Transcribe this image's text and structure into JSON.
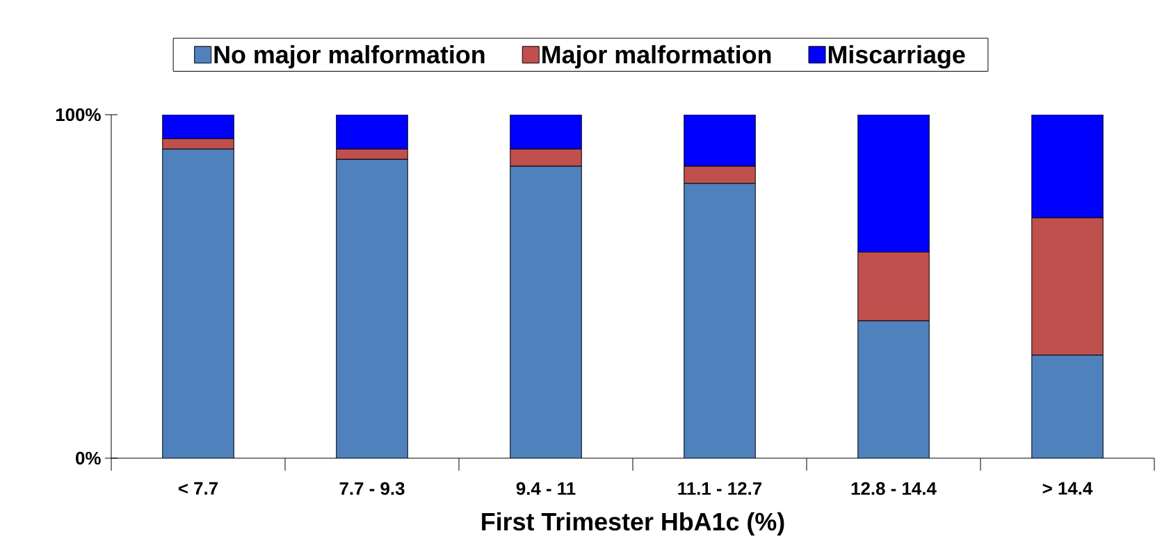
{
  "chart_data": {
    "type": "bar",
    "stacked": true,
    "xlabel": "First  Trimester  HbA1c  (%)",
    "categories": [
      "< 7.7",
      "7.7 - 9.3",
      "9.4 - 11",
      "11.1 - 12.7",
      "12.8 - 14.4",
      "> 14.4"
    ],
    "series": [
      {
        "name": "No  major malformation",
        "color": "#4f81bd",
        "values": [
          90,
          87,
          85,
          80,
          40,
          30
        ]
      },
      {
        "name": "Major malformation",
        "color": "#c0504d",
        "values": [
          3,
          3,
          5,
          5,
          20,
          40
        ]
      },
      {
        "name": "Miscarriage",
        "color": "#0000ff",
        "values": [
          7,
          10,
          10,
          15,
          40,
          30
        ]
      }
    ],
    "ylim": [
      0,
      100
    ],
    "yticks": [
      {
        "value": 0,
        "label": "0%"
      },
      {
        "value": 100,
        "label": "100%"
      }
    ],
    "legend": "top"
  }
}
